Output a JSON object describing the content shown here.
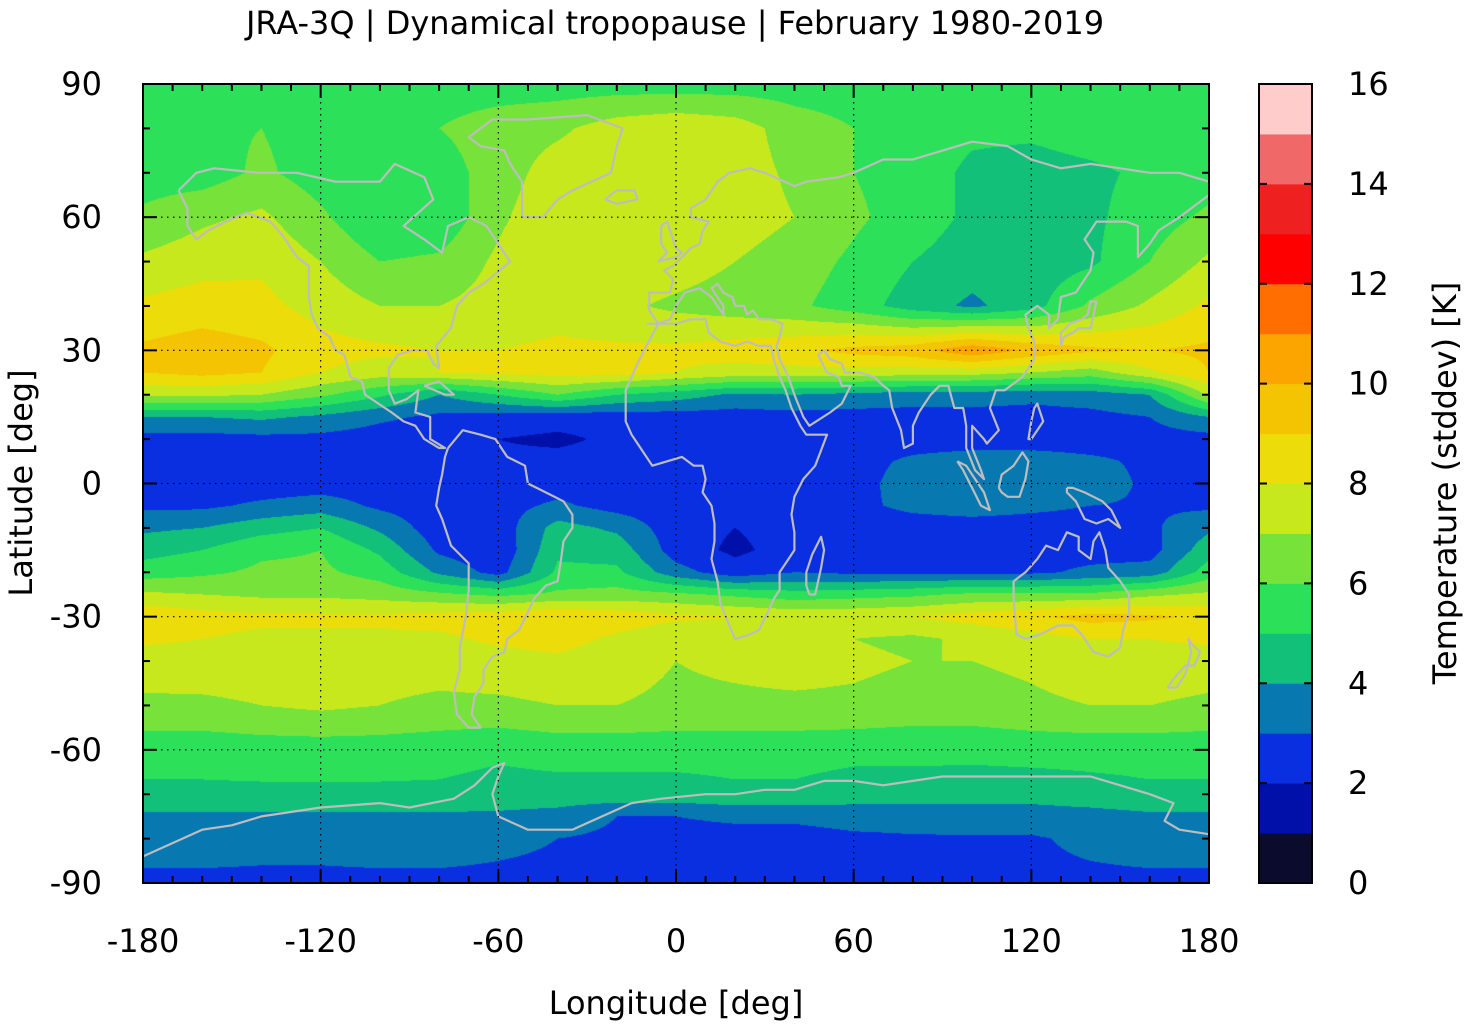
{
  "chart_data": {
    "type": "heatmap",
    "title": "JRA-3Q | Dynamical tropopause | February 1980-2019",
    "xlabel": "Longitude [deg]",
    "ylabel": "Latitude [deg]",
    "colorbar_label": "Temperature (stddev) [K]",
    "xlim": [
      -180,
      180
    ],
    "ylim": [
      -90,
      90
    ],
    "xticks": [
      -180,
      -120,
      -60,
      0,
      60,
      120,
      180
    ],
    "xtick_labels": [
      "-180",
      "-120",
      "-60",
      "0",
      "60",
      "120",
      "180"
    ],
    "yticks": [
      90,
      60,
      30,
      0,
      -30,
      -60,
      -90
    ],
    "ytick_labels": [
      "90",
      "60",
      "30",
      "0",
      "-30",
      "-60",
      "-90"
    ],
    "colorbar_ticks": [
      0,
      2,
      4,
      6,
      8,
      10,
      12,
      14,
      16
    ],
    "colorbar_tick_labels": [
      "0",
      "2",
      "4",
      "6",
      "8",
      "10",
      "12",
      "14",
      "16"
    ],
    "grid": true,
    "coastlines": true,
    "levels": [
      0,
      1,
      2,
      3,
      4,
      5,
      6,
      7,
      8,
      9,
      10,
      11,
      12,
      13,
      14,
      15,
      16
    ],
    "colors": [
      "#0b0b2e",
      "#0010a8",
      "#0a2fe0",
      "#0878b0",
      "#12c07a",
      "#2ce05a",
      "#76e23a",
      "#c8e81e",
      "#ecdc0a",
      "#f4c402",
      "#fca400",
      "#ff6e00",
      "#ff0000",
      "#ee2020",
      "#f06868",
      "#ffcccc"
    ],
    "latitudes": [
      90,
      80,
      70,
      60,
      50,
      40,
      30,
      25,
      20,
      15,
      10,
      5,
      0,
      -5,
      -10,
      -15,
      -20,
      -25,
      -30,
      -35,
      -40,
      -50,
      -60,
      -70,
      -75,
      -80,
      -90
    ],
    "longitudes": [
      -180,
      -160,
      -140,
      -120,
      -100,
      -80,
      -60,
      -40,
      -20,
      0,
      20,
      40,
      60,
      80,
      100,
      120,
      140,
      160,
      180
    ],
    "values": [
      [
        5.5,
        5.5,
        5.5,
        5.5,
        5.5,
        5.5,
        5.5,
        5.5,
        5.5,
        5.5,
        5.5,
        5.5,
        5.5,
        5.5,
        5.5,
        5.5,
        5.5,
        5.5,
        5.5
      ],
      [
        5.8,
        5.8,
        6.0,
        5.5,
        5.5,
        6.0,
        6.5,
        6.8,
        7.5,
        7.8,
        7.5,
        6.5,
        6.0,
        5.5,
        5.2,
        5.2,
        5.5,
        5.8,
        5.8
      ],
      [
        5.5,
        5.5,
        6.2,
        5.5,
        5.0,
        5.5,
        6.5,
        7.5,
        7.8,
        7.8,
        7.5,
        6.8,
        6.0,
        5.5,
        4.8,
        4.6,
        4.8,
        5.2,
        5.5
      ],
      [
        6.2,
        6.8,
        7.2,
        6.2,
        5.0,
        5.2,
        6.8,
        7.8,
        8.0,
        7.8,
        7.5,
        7.0,
        6.2,
        5.5,
        4.8,
        4.5,
        4.8,
        5.5,
        6.2
      ],
      [
        7.2,
        7.6,
        7.8,
        7.0,
        6.0,
        6.2,
        7.2,
        8.0,
        7.8,
        7.5,
        7.0,
        6.5,
        5.8,
        5.0,
        4.5,
        4.4,
        4.8,
        6.0,
        7.2
      ],
      [
        8.2,
        8.5,
        8.3,
        7.6,
        7.0,
        7.0,
        7.4,
        7.6,
        7.2,
        6.8,
        6.5,
        6.2,
        5.5,
        4.5,
        3.8,
        4.6,
        6.2,
        7.2,
        8.2
      ],
      [
        9.2,
        9.5,
        9.2,
        8.4,
        8.2,
        8.0,
        8.0,
        8.2,
        8.2,
        8.2,
        8.5,
        8.8,
        9.3,
        9.6,
        10.8,
        9.8,
        9.2,
        9.0,
        9.2
      ],
      [
        9.0,
        9.3,
        9.0,
        8.0,
        7.5,
        8.0,
        8.2,
        8.4,
        8.4,
        8.0,
        7.6,
        7.6,
        7.6,
        7.5,
        7.4,
        7.0,
        6.5,
        7.8,
        9.0
      ],
      [
        7.2,
        7.2,
        7.0,
        6.2,
        5.2,
        4.0,
        5.0,
        6.0,
        5.0,
        4.5,
        3.8,
        4.0,
        3.7,
        3.5,
        3.5,
        3.3,
        3.5,
        4.0,
        7.2
      ],
      [
        4.0,
        4.0,
        4.2,
        3.8,
        3.2,
        2.8,
        2.6,
        2.4,
        2.4,
        2.5,
        2.5,
        2.6,
        2.6,
        2.6,
        2.6,
        2.6,
        2.7,
        3.0,
        4.0
      ],
      [
        2.6,
        2.6,
        2.7,
        2.7,
        2.5,
        2.2,
        2.0,
        1.8,
        2.2,
        2.4,
        2.4,
        2.5,
        2.5,
        2.5,
        2.5,
        2.5,
        2.5,
        2.6,
        2.6
      ],
      [
        2.4,
        2.4,
        2.5,
        2.5,
        2.4,
        2.3,
        2.2,
        2.3,
        2.4,
        2.4,
        2.4,
        2.5,
        2.6,
        3.2,
        3.5,
        3.5,
        3.2,
        2.8,
        2.4
      ],
      [
        2.3,
        2.3,
        2.4,
        2.5,
        2.5,
        2.4,
        2.4,
        2.5,
        2.5,
        2.4,
        2.4,
        2.5,
        2.6,
        3.5,
        3.6,
        3.6,
        3.5,
        2.8,
        2.3
      ],
      [
        2.8,
        2.8,
        3.2,
        3.5,
        2.8,
        2.4,
        2.6,
        3.2,
        2.6,
        2.4,
        2.4,
        2.6,
        2.8,
        3.2,
        3.4,
        3.2,
        3.0,
        2.9,
        2.8
      ],
      [
        3.8,
        4.0,
        4.6,
        5.0,
        3.8,
        2.4,
        2.4,
        4.4,
        3.8,
        2.4,
        2.0,
        2.4,
        2.6,
        2.6,
        2.6,
        2.6,
        2.6,
        2.8,
        3.8
      ],
      [
        4.6,
        5.0,
        5.8,
        6.0,
        4.8,
        2.8,
        2.2,
        4.8,
        4.6,
        2.5,
        1.8,
        2.4,
        2.6,
        2.6,
        2.6,
        2.6,
        2.6,
        2.6,
        4.6
      ],
      [
        5.5,
        5.8,
        6.2,
        6.2,
        5.6,
        3.8,
        2.6,
        5.2,
        5.2,
        3.4,
        2.4,
        3.0,
        2.8,
        2.8,
        2.8,
        2.8,
        3.2,
        3.4,
        5.5
      ],
      [
        7.2,
        7.0,
        6.8,
        6.8,
        6.6,
        6.2,
        5.8,
        6.2,
        6.4,
        6.2,
        5.8,
        5.4,
        5.6,
        5.8,
        6.2,
        6.2,
        6.2,
        6.8,
        7.2
      ],
      [
        8.8,
        8.4,
        8.2,
        8.2,
        8.2,
        8.4,
        8.6,
        9.0,
        8.6,
        8.2,
        8.0,
        7.8,
        7.8,
        8.0,
        8.4,
        8.8,
        9.4,
        9.2,
        8.8
      ],
      [
        8.2,
        8.0,
        7.8,
        7.8,
        7.8,
        7.8,
        8.2,
        8.4,
        7.8,
        7.2,
        7.5,
        7.6,
        7.0,
        6.8,
        7.2,
        7.6,
        8.0,
        8.0,
        8.2
      ],
      [
        7.5,
        7.6,
        7.6,
        7.6,
        7.4,
        7.4,
        7.6,
        7.8,
        7.4,
        7.0,
        7.2,
        7.4,
        7.2,
        7.0,
        7.0,
        7.2,
        7.6,
        7.6,
        7.5
      ],
      [
        6.8,
        6.8,
        7.0,
        7.2,
        7.0,
        6.8,
        6.8,
        7.0,
        7.0,
        6.8,
        6.8,
        6.8,
        6.8,
        6.6,
        6.6,
        6.8,
        7.0,
        7.0,
        6.8
      ],
      [
        5.4,
        5.4,
        5.5,
        5.5,
        5.5,
        5.4,
        5.2,
        5.4,
        5.4,
        5.4,
        5.4,
        5.4,
        5.3,
        5.3,
        5.3,
        5.4,
        5.4,
        5.4,
        5.4
      ],
      [
        4.8,
        4.8,
        4.8,
        4.8,
        4.8,
        4.8,
        4.6,
        4.6,
        4.6,
        4.6,
        4.8,
        4.8,
        4.5,
        4.5,
        4.4,
        4.4,
        4.6,
        4.8,
        4.8
      ],
      [
        3.8,
        3.8,
        3.8,
        3.8,
        3.8,
        3.8,
        3.8,
        3.6,
        3.0,
        3.0,
        3.2,
        3.2,
        3.4,
        3.4,
        3.5,
        3.5,
        3.6,
        3.8,
        3.8
      ],
      [
        3.4,
        3.4,
        3.3,
        3.3,
        3.4,
        3.4,
        3.2,
        3.0,
        2.8,
        2.6,
        2.6,
        2.6,
        2.8,
        2.9,
        2.9,
        2.9,
        3.2,
        3.4,
        3.4
      ],
      [
        2.8,
        2.8,
        2.8,
        2.8,
        2.8,
        2.8,
        2.8,
        2.8,
        2.8,
        2.8,
        2.8,
        2.8,
        2.8,
        2.8,
        2.8,
        2.8,
        2.8,
        2.8,
        2.8
      ]
    ]
  }
}
